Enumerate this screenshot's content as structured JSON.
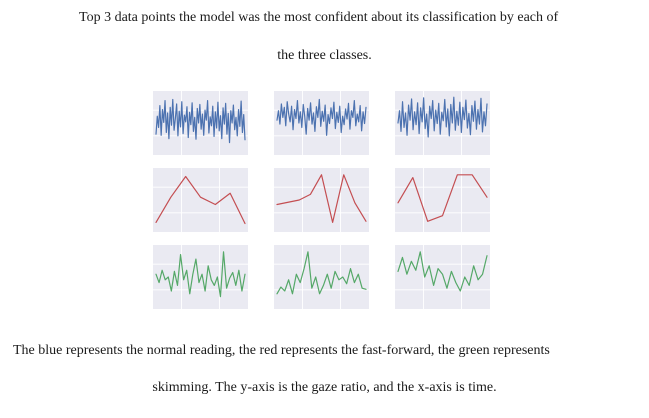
{
  "intro": {
    "line1": "Top 3 data points the model was the most confident about its classification by each of",
    "line2": "the three classes."
  },
  "figure": {
    "grid": true,
    "rows": [
      {
        "color": "#4c72b0",
        "panels": [
          [
            0.3,
            0.62,
            0.42,
            0.81,
            0.28,
            0.74,
            0.51,
            0.9,
            0.33,
            0.68,
            0.22,
            0.78,
            0.46,
            0.92,
            0.37,
            0.58,
            0.84,
            0.27,
            0.71,
            0.43,
            0.88,
            0.31,
            0.64,
            0.52,
            0.79,
            0.24,
            0.69,
            0.47,
            0.86,
            0.35,
            0.6,
            0.21,
            0.76,
            0.5,
            0.83,
            0.39,
            0.66,
            0.28,
            0.73,
            0.55,
            0.9,
            0.32,
            0.61,
            0.45,
            0.8,
            0.26,
            0.7,
            0.41,
            0.87,
            0.36,
            0.63,
            0.22,
            0.77,
            0.48,
            0.85,
            0.3,
            0.67,
            0.15,
            0.72,
            0.5,
            0.82,
            0.38,
            0.6,
            0.27,
            0.74,
            0.44,
            0.89,
            0.33,
            0.65,
            0.2
          ],
          [
            0.55,
            0.72,
            0.48,
            0.84,
            0.6,
            0.78,
            0.45,
            0.88,
            0.66,
            0.52,
            0.8,
            0.38,
            0.74,
            0.58,
            0.9,
            0.5,
            0.7,
            0.42,
            0.83,
            0.62,
            0.3,
            0.76,
            0.55,
            0.86,
            0.48,
            0.68,
            0.35,
            0.79,
            0.6,
            0.92,
            0.44,
            0.71,
            0.53,
            0.82,
            0.28,
            0.65,
            0.49,
            0.77,
            0.58,
            0.87,
            0.4,
            0.69,
            0.51,
            0.8,
            0.33,
            0.62,
            0.47,
            0.75,
            0.57,
            0.85,
            0.39,
            0.72,
            0.6,
            0.9,
            0.45,
            0.66,
            0.52,
            0.81,
            0.36,
            0.7,
            0.49,
            0.78
          ],
          [
            0.5,
            0.72,
            0.35,
            0.88,
            0.42,
            0.68,
            0.28,
            0.82,
            0.55,
            0.93,
            0.38,
            0.7,
            0.47,
            0.86,
            0.31,
            0.77,
            0.52,
            0.95,
            0.4,
            0.66,
            0.25,
            0.8,
            0.58,
            0.9,
            0.36,
            0.73,
            0.49,
            0.85,
            0.3,
            0.69,
            0.54,
            0.92,
            0.43,
            0.75,
            0.27,
            0.83,
            0.5,
            0.96,
            0.37,
            0.71,
            0.46,
            0.87,
            0.33,
            0.78,
            0.56,
            0.91,
            0.41,
            0.67,
            0.29,
            0.81,
            0.53,
            0.89,
            0.39,
            0.74,
            0.48,
            0.94,
            0.34,
            0.7,
            0.45,
            0.84
          ]
        ]
      },
      {
        "color": "#c44e52",
        "panels": [
          [
            0.1,
            0.55,
            0.92,
            0.55,
            0.42,
            0.62,
            0.08
          ],
          [
            0.42,
            0.46,
            0.5,
            0.6,
            0.95,
            0.1,
            0.95,
            0.45,
            0.12
          ],
          [
            0.45,
            0.9,
            0.12,
            0.22,
            0.95,
            0.95,
            0.55
          ]
        ]
      },
      {
        "color": "#55a868",
        "panels": [
          [
            0.55,
            0.4,
            0.62,
            0.45,
            0.5,
            0.25,
            0.6,
            0.35,
            0.9,
            0.45,
            0.62,
            0.2,
            0.55,
            0.82,
            0.4,
            0.55,
            0.25,
            0.7,
            0.45,
            0.35,
            0.5,
            0.15,
            0.95,
            0.3,
            0.48,
            0.58,
            0.35,
            0.62,
            0.25,
            0.55
          ],
          [
            0.2,
            0.32,
            0.25,
            0.45,
            0.2,
            0.55,
            0.4,
            0.65,
            0.95,
            0.3,
            0.5,
            0.2,
            0.35,
            0.55,
            0.3,
            0.6,
            0.45,
            0.5,
            0.38,
            0.65,
            0.4,
            0.55,
            0.3,
            0.28
          ],
          [
            0.6,
            0.85,
            0.55,
            0.78,
            0.62,
            0.95,
            0.5,
            0.7,
            0.35,
            0.65,
            0.55,
            0.3,
            0.6,
            0.4,
            0.25,
            0.5,
            0.35,
            0.7,
            0.45,
            0.55,
            0.88
          ]
        ]
      }
    ]
  },
  "paragraph": {
    "line1": "The blue represents the normal reading, the red represents the fast-forward, the green represents",
    "line2": "skimming. The y-axis is the gaze ratio, and the x-axis is time."
  }
}
